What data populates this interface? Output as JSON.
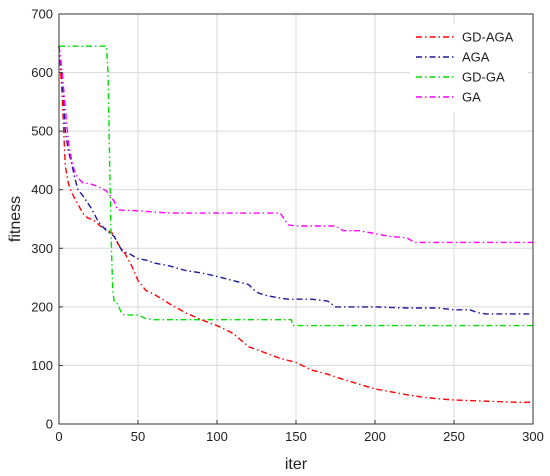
{
  "chart_data": {
    "type": "line",
    "xlabel": "iter",
    "ylabel": "fitness",
    "xlim": [
      0,
      300
    ],
    "ylim": [
      0,
      700
    ],
    "xticks": [
      0,
      50,
      100,
      150,
      200,
      250,
      300
    ],
    "yticks": [
      0,
      100,
      200,
      300,
      400,
      500,
      600,
      700
    ],
    "grid": true,
    "legend_position": "top-right",
    "series": [
      {
        "name": "GD-AGA",
        "color": "#ff0000",
        "dash": "dash-dot",
        "x": [
          0,
          2,
          4,
          6,
          8,
          10,
          12,
          15,
          18,
          22,
          26,
          30,
          34,
          38,
          42,
          46,
          50,
          55,
          60,
          70,
          80,
          90,
          100,
          110,
          120,
          130,
          140,
          150,
          160,
          170,
          180,
          190,
          200,
          210,
          220,
          230,
          240,
          250,
          260,
          270,
          280,
          290,
          300
        ],
        "y": [
          645,
          560,
          440,
          410,
          395,
          385,
          375,
          360,
          352,
          348,
          338,
          333,
          325,
          305,
          290,
          270,
          245,
          228,
          222,
          205,
          190,
          178,
          168,
          155,
          132,
          122,
          112,
          105,
          92,
          85,
          76,
          68,
          60,
          55,
          50,
          46,
          43,
          41,
          40,
          39,
          38,
          37,
          37
        ]
      },
      {
        "name": "AGA",
        "color": "#1a1a9c",
        "dash": "dash-dot",
        "x": [
          0,
          2,
          4,
          6,
          8,
          10,
          12,
          15,
          20,
          25,
          30,
          35,
          40,
          45,
          50,
          55,
          60,
          70,
          80,
          90,
          100,
          110,
          120,
          125,
          130,
          140,
          145,
          150,
          160,
          170,
          175,
          180,
          200,
          220,
          240,
          250,
          260,
          265,
          270,
          280,
          290,
          300
        ],
        "y": [
          645,
          590,
          500,
          465,
          445,
          420,
          400,
          390,
          370,
          345,
          330,
          320,
          295,
          290,
          282,
          280,
          275,
          270,
          262,
          258,
          252,
          245,
          238,
          225,
          220,
          215,
          213,
          213,
          213,
          210,
          200,
          200,
          200,
          198,
          198,
          195,
          195,
          190,
          188,
          188,
          188,
          188
        ]
      },
      {
        "name": "GD-GA",
        "color": "#00dd00",
        "dash": "dash-dot",
        "x": [
          0,
          5,
          10,
          15,
          20,
          25,
          30,
          31,
          32,
          33,
          34,
          35,
          37,
          40,
          45,
          50,
          55,
          60,
          100,
          140,
          147,
          148,
          200,
          250,
          300
        ],
        "y": [
          645,
          645,
          645,
          645,
          645,
          645,
          645,
          600,
          450,
          320,
          230,
          208,
          205,
          187,
          186,
          186,
          180,
          178,
          178,
          178,
          178,
          168,
          168,
          168,
          168
        ]
      },
      {
        "name": "GA",
        "color": "#ff00ff",
        "dash": "dash-dot",
        "x": [
          0,
          2,
          4,
          6,
          8,
          10,
          12,
          15,
          20,
          25,
          30,
          35,
          37,
          40,
          50,
          60,
          70,
          100,
          140,
          145,
          150,
          160,
          175,
          180,
          190,
          200,
          210,
          220,
          225,
          250,
          300
        ],
        "y": [
          645,
          600,
          540,
          480,
          450,
          430,
          420,
          412,
          410,
          405,
          398,
          380,
          366,
          365,
          364,
          362,
          360,
          360,
          360,
          340,
          338,
          338,
          338,
          330,
          330,
          325,
          320,
          318,
          310,
          310,
          310
        ]
      }
    ]
  }
}
